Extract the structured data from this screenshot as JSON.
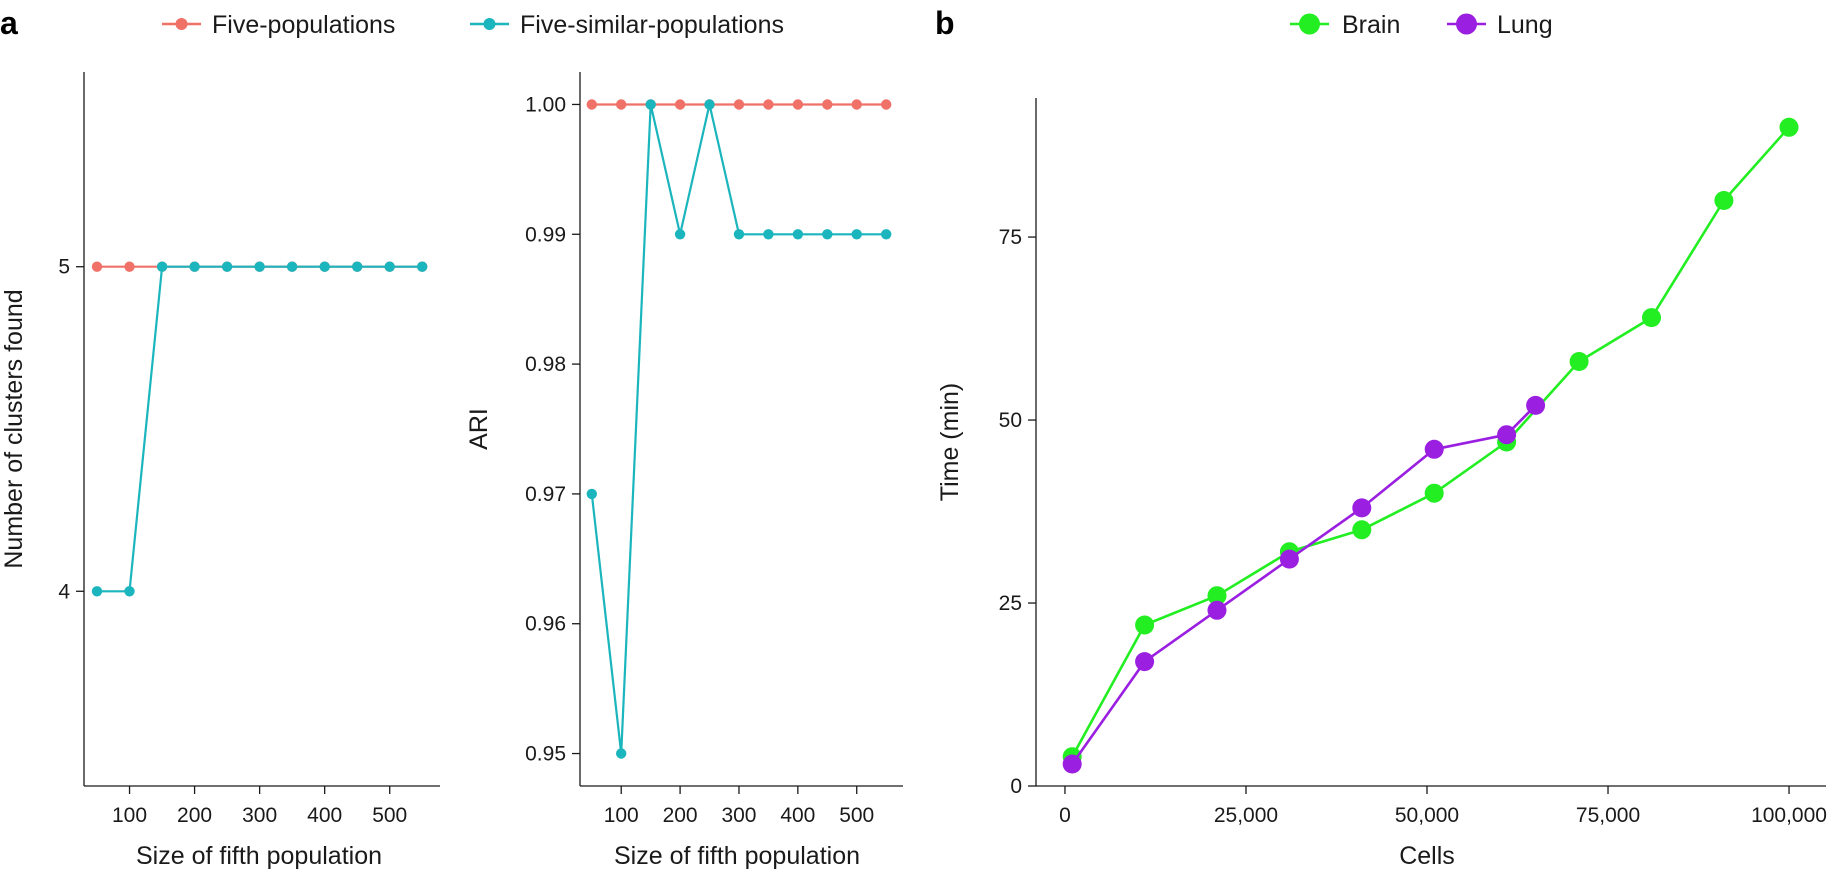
{
  "panels": {
    "a": "a",
    "b": "b"
  },
  "legend_a": {
    "items": [
      {
        "label": "Five-populations",
        "color": "#F07167"
      },
      {
        "label": "Five-similar-populations",
        "color": "#1BB5BD"
      }
    ]
  },
  "legend_b": {
    "items": [
      {
        "label": "Brain",
        "color": "#22EE22"
      },
      {
        "label": "Lung",
        "color": "#9A1FE0"
      }
    ]
  },
  "chart_data": [
    {
      "type": "line",
      "title": "",
      "xlabel": "Size of fifth population",
      "ylabel": "Number of clusters found",
      "xlim": [
        30,
        565
      ],
      "ylim": [
        3.4,
        5.6
      ],
      "xticks": [
        100,
        200,
        300,
        400,
        500
      ],
      "xtick_labels": [
        "100",
        "200",
        "300",
        "400",
        "500"
      ],
      "yticks": [
        4,
        5
      ],
      "ytick_labels": [
        "4",
        "5"
      ],
      "x": [
        50,
        100,
        150,
        200,
        250,
        300,
        350,
        400,
        450,
        500,
        550
      ],
      "series": [
        {
          "name": "Five-populations",
          "color": "#F07167",
          "values": [
            5,
            5,
            5,
            5,
            5,
            5,
            5,
            5,
            5,
            5,
            5
          ]
        },
        {
          "name": "Five-similar-populations",
          "color": "#1BB5BD",
          "values": [
            4,
            4,
            5,
            5,
            5,
            5,
            5,
            5,
            5,
            5,
            5
          ]
        }
      ]
    },
    {
      "type": "line",
      "title": "",
      "xlabel": "Size of fifth population",
      "ylabel": "ARI",
      "xlim": [
        30,
        565
      ],
      "ylim": [
        0.9475,
        1.0025
      ],
      "xticks": [
        100,
        200,
        300,
        400,
        500
      ],
      "xtick_labels": [
        "100",
        "200",
        "300",
        "400",
        "500"
      ],
      "yticks": [
        0.95,
        0.96,
        0.97,
        0.98,
        0.99,
        1.0
      ],
      "ytick_labels": [
        "0.95",
        "0.96",
        "0.97",
        "0.98",
        "0.99",
        "1.00"
      ],
      "x": [
        50,
        100,
        150,
        200,
        250,
        300,
        350,
        400,
        450,
        500,
        550
      ],
      "series": [
        {
          "name": "Five-populations",
          "color": "#F07167",
          "values": [
            1.0,
            1.0,
            1.0,
            1.0,
            1.0,
            1.0,
            1.0,
            1.0,
            1.0,
            1.0,
            1.0
          ]
        },
        {
          "name": "Five-similar-populations",
          "color": "#1BB5BD",
          "values": [
            0.97,
            0.95,
            1.0,
            0.99,
            1.0,
            0.99,
            0.99,
            0.99,
            0.99,
            0.99,
            0.99
          ]
        }
      ]
    },
    {
      "type": "line",
      "title": "",
      "xlabel": "Cells",
      "ylabel": "Time (min)",
      "xlim": [
        -4000,
        104000
      ],
      "ylim": [
        0,
        94
      ],
      "xticks": [
        0,
        25000,
        50000,
        75000,
        100000
      ],
      "xtick_labels": [
        "0",
        "25,000",
        "50,000",
        "75,000",
        "100,000"
      ],
      "yticks": [
        0,
        25,
        50,
        75
      ],
      "ytick_labels": [
        "0",
        "25",
        "50",
        "75"
      ],
      "series": [
        {
          "name": "Brain",
          "color": "#22EE22",
          "x": [
            1000,
            11000,
            21000,
            31000,
            41000,
            51000,
            61000,
            71000,
            81000,
            91000,
            100000
          ],
          "values": [
            4,
            22,
            26,
            32,
            35,
            40,
            47,
            58,
            64,
            80,
            90
          ]
        },
        {
          "name": "Lung",
          "color": "#9A1FE0",
          "x": [
            1000,
            11000,
            21000,
            31000,
            41000,
            51000,
            61000,
            65000
          ],
          "values": [
            3,
            17,
            24,
            31,
            38,
            46,
            48,
            52
          ]
        }
      ]
    }
  ]
}
